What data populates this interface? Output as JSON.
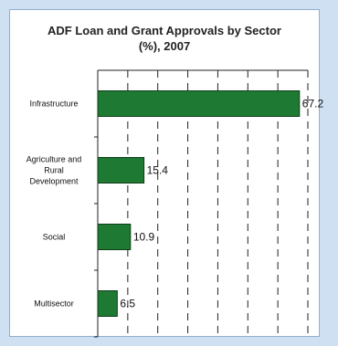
{
  "colors": {
    "page_background": "#cfe0f2",
    "panel_background": "#ffffff",
    "bar_fill": "#1e7a32",
    "bar_stroke": "#0f3d18"
  },
  "chart_data": {
    "type": "bar",
    "orientation": "horizontal",
    "title": "ADF Loan and Grant Approvals by Sector\n(%), 2007",
    "categories": [
      "Infrastructure",
      "Agriculture and\nRural\nDevelopment",
      "Social",
      "Multisector"
    ],
    "values": [
      67.2,
      15.4,
      10.9,
      6.5
    ],
    "value_labels": [
      "67.2",
      "15.4",
      "10.9",
      "6.5"
    ],
    "xlim": [
      0,
      70
    ],
    "xtick_step": 10,
    "grid": "vertical dashed",
    "legend": "none",
    "xlabel": "",
    "ylabel": ""
  }
}
